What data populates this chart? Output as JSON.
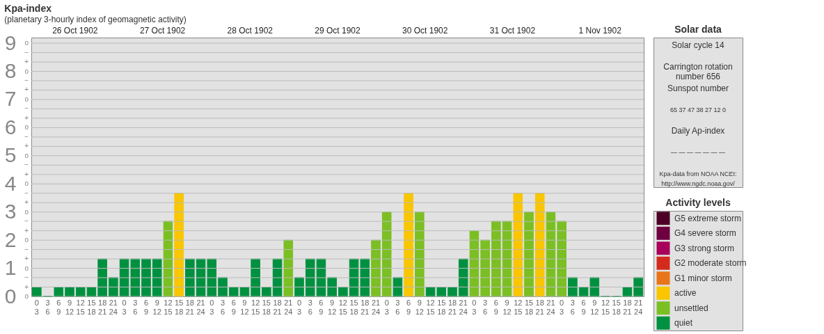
{
  "chart_data": [
    {
      "type": "bar",
      "title": "Kpa-index",
      "subtitle": "(planetary 3-hourly index of geomagnetic activity)",
      "categories": [
        "0 3",
        "3 6",
        "6 9",
        "9 12",
        "12 15",
        "15 18",
        "18 21",
        "21 24",
        "0 3",
        "3 6",
        "6 9",
        "9 12",
        "12 15",
        "15 18",
        "18 21",
        "21 24",
        "0 3",
        "3 6",
        "6 9",
        "9 12",
        "12 15",
        "15 18",
        "18 21",
        "21 24",
        "0 3",
        "3 6",
        "6 9",
        "9 12",
        "12 15",
        "15 18",
        "18 21",
        "21 24",
        "0 3",
        "3 6",
        "6 9",
        "9 12",
        "12 15",
        "15 18",
        "18 21",
        "21 24",
        "0 3",
        "3 6",
        "6 9",
        "9 12",
        "12 15",
        "15 18",
        "18 21",
        "21 24",
        "0 3",
        "3 6",
        "6 9",
        "9 12",
        "12 15",
        "15 18",
        "18 21",
        "21 24"
      ],
      "series": [
        {
          "name": "G5 extreme storm",
          "color": "#4d0026",
          "values": [
            null,
            null,
            null,
            null,
            null,
            null,
            null,
            null,
            null,
            null,
            null,
            null,
            null,
            null,
            null,
            null,
            null,
            null,
            null,
            null,
            null,
            null,
            null,
            null,
            null,
            null,
            null,
            null,
            null,
            null,
            null,
            null,
            null,
            null,
            null,
            null,
            null,
            null,
            null,
            null,
            null,
            null,
            null,
            null,
            null,
            null,
            null,
            null,
            null,
            null,
            null,
            null,
            null,
            null,
            null,
            null
          ]
        },
        {
          "name": "G4 severe storm",
          "color": "#6e0040",
          "values": [
            null,
            null,
            null,
            null,
            null,
            null,
            null,
            null,
            null,
            null,
            null,
            null,
            null,
            null,
            null,
            null,
            null,
            null,
            null,
            null,
            null,
            null,
            null,
            null,
            null,
            null,
            null,
            null,
            null,
            null,
            null,
            null,
            null,
            null,
            null,
            null,
            null,
            null,
            null,
            null,
            null,
            null,
            null,
            null,
            null,
            null,
            null,
            null,
            null,
            null,
            null,
            null,
            null,
            null,
            null,
            null
          ]
        },
        {
          "name": "G3 strong storm",
          "color": "#a8005a",
          "values": [
            null,
            null,
            null,
            null,
            null,
            null,
            null,
            null,
            null,
            null,
            null,
            null,
            null,
            null,
            null,
            null,
            null,
            null,
            null,
            null,
            null,
            null,
            null,
            null,
            null,
            null,
            null,
            null,
            null,
            null,
            null,
            null,
            null,
            null,
            null,
            null,
            null,
            null,
            null,
            null,
            null,
            null,
            null,
            null,
            null,
            null,
            null,
            null,
            null,
            null,
            null,
            null,
            null,
            null,
            null,
            null
          ]
        },
        {
          "name": "G2 moderate storm",
          "color": "#d42a1e",
          "values": [
            null,
            null,
            null,
            null,
            null,
            null,
            null,
            null,
            null,
            null,
            null,
            null,
            null,
            null,
            null,
            null,
            null,
            null,
            null,
            null,
            null,
            null,
            null,
            null,
            null,
            null,
            null,
            null,
            null,
            null,
            null,
            null,
            null,
            null,
            null,
            null,
            null,
            null,
            null,
            null,
            null,
            null,
            null,
            null,
            null,
            null,
            null,
            null,
            null,
            null,
            null,
            null,
            null,
            null,
            null,
            null
          ]
        },
        {
          "name": "G1 minor storm",
          "color": "#e8751a",
          "values": [
            null,
            null,
            null,
            null,
            null,
            null,
            null,
            null,
            null,
            null,
            null,
            null,
            null,
            null,
            null,
            null,
            null,
            null,
            null,
            null,
            null,
            null,
            null,
            null,
            null,
            null,
            null,
            null,
            null,
            null,
            null,
            null,
            null,
            null,
            null,
            null,
            null,
            null,
            null,
            null,
            null,
            null,
            null,
            null,
            null,
            null,
            null,
            null,
            null,
            null,
            null,
            null,
            null,
            null,
            null,
            null
          ]
        },
        {
          "name": "active",
          "color": "#f9c600",
          "values": [
            null,
            null,
            null,
            null,
            null,
            null,
            null,
            null,
            null,
            null,
            null,
            null,
            null,
            3.67,
            null,
            null,
            null,
            null,
            null,
            null,
            null,
            null,
            null,
            null,
            null,
            null,
            null,
            null,
            null,
            null,
            null,
            null,
            null,
            null,
            3.67,
            null,
            null,
            null,
            null,
            null,
            null,
            null,
            null,
            null,
            3.67,
            null,
            3.67,
            null,
            null,
            null,
            null,
            null,
            null,
            null,
            null,
            null
          ]
        },
        {
          "name": "unsettled",
          "color": "#7bbf23",
          "values": [
            null,
            null,
            null,
            null,
            null,
            null,
            null,
            null,
            null,
            null,
            null,
            null,
            2.67,
            null,
            null,
            null,
            null,
            null,
            null,
            null,
            null,
            null,
            null,
            2,
            null,
            null,
            null,
            null,
            null,
            null,
            null,
            2,
            3,
            null,
            null,
            3,
            null,
            null,
            null,
            null,
            2.33,
            2,
            2.67,
            2.67,
            null,
            3,
            null,
            3,
            2.67,
            null,
            null,
            null,
            null,
            null,
            null,
            null
          ]
        },
        {
          "name": "quiet",
          "color": "#009140",
          "values": [
            0.33,
            0,
            0.33,
            0.33,
            0.33,
            0.33,
            1.33,
            0.67,
            1.33,
            1.33,
            1.33,
            1.33,
            null,
            null,
            1.33,
            1.33,
            1.33,
            0.67,
            0.33,
            0.33,
            1.33,
            0.33,
            1.33,
            null,
            0.67,
            1.33,
            1.33,
            0.67,
            0.33,
            1.33,
            1.33,
            null,
            null,
            0.67,
            null,
            null,
            0.33,
            0.33,
            0.33,
            1.33,
            null,
            null,
            null,
            null,
            null,
            null,
            null,
            null,
            null,
            0.67,
            0.33,
            0.67,
            0,
            0,
            0.33,
            0.67
          ]
        }
      ],
      "ylim": [
        0,
        9.2
      ],
      "yticks": [
        0,
        1,
        2,
        3,
        4,
        5,
        6,
        7,
        8,
        9
      ],
      "annotations": [
        "26 Oct 1902",
        "27 Oct 1902",
        "28 Oct 1902",
        "29 Oct 1902",
        "30 Oct 1902",
        "31 Oct 1902",
        "1 Nov 1902",
        "o",
        "+",
        "−",
        "o",
        "+",
        "−",
        "o",
        "+",
        "−",
        "o",
        "+",
        "−",
        "o",
        "+",
        "−",
        "o",
        "+",
        "−",
        "o",
        "+",
        "−",
        "o",
        "+",
        "−",
        "o",
        "+",
        "−",
        "o"
      ],
      "grid": "y",
      "legend": "right",
      "legend_title": "Activity levels"
    },
    {
      "type": "other",
      "title": "Solar data",
      "annotations": [
        "Solar cycle 14",
        "Carrington rotation\nnumber 656",
        "Sunspot number",
        "65   37   47   38   27   12   0",
        "Daily Ap-index",
        "—   —   —   —   —   —   —",
        "Kpa-data from NOAA NCEI:\nhttp://www.ngdc.noaa.gov/"
      ]
    }
  ]
}
